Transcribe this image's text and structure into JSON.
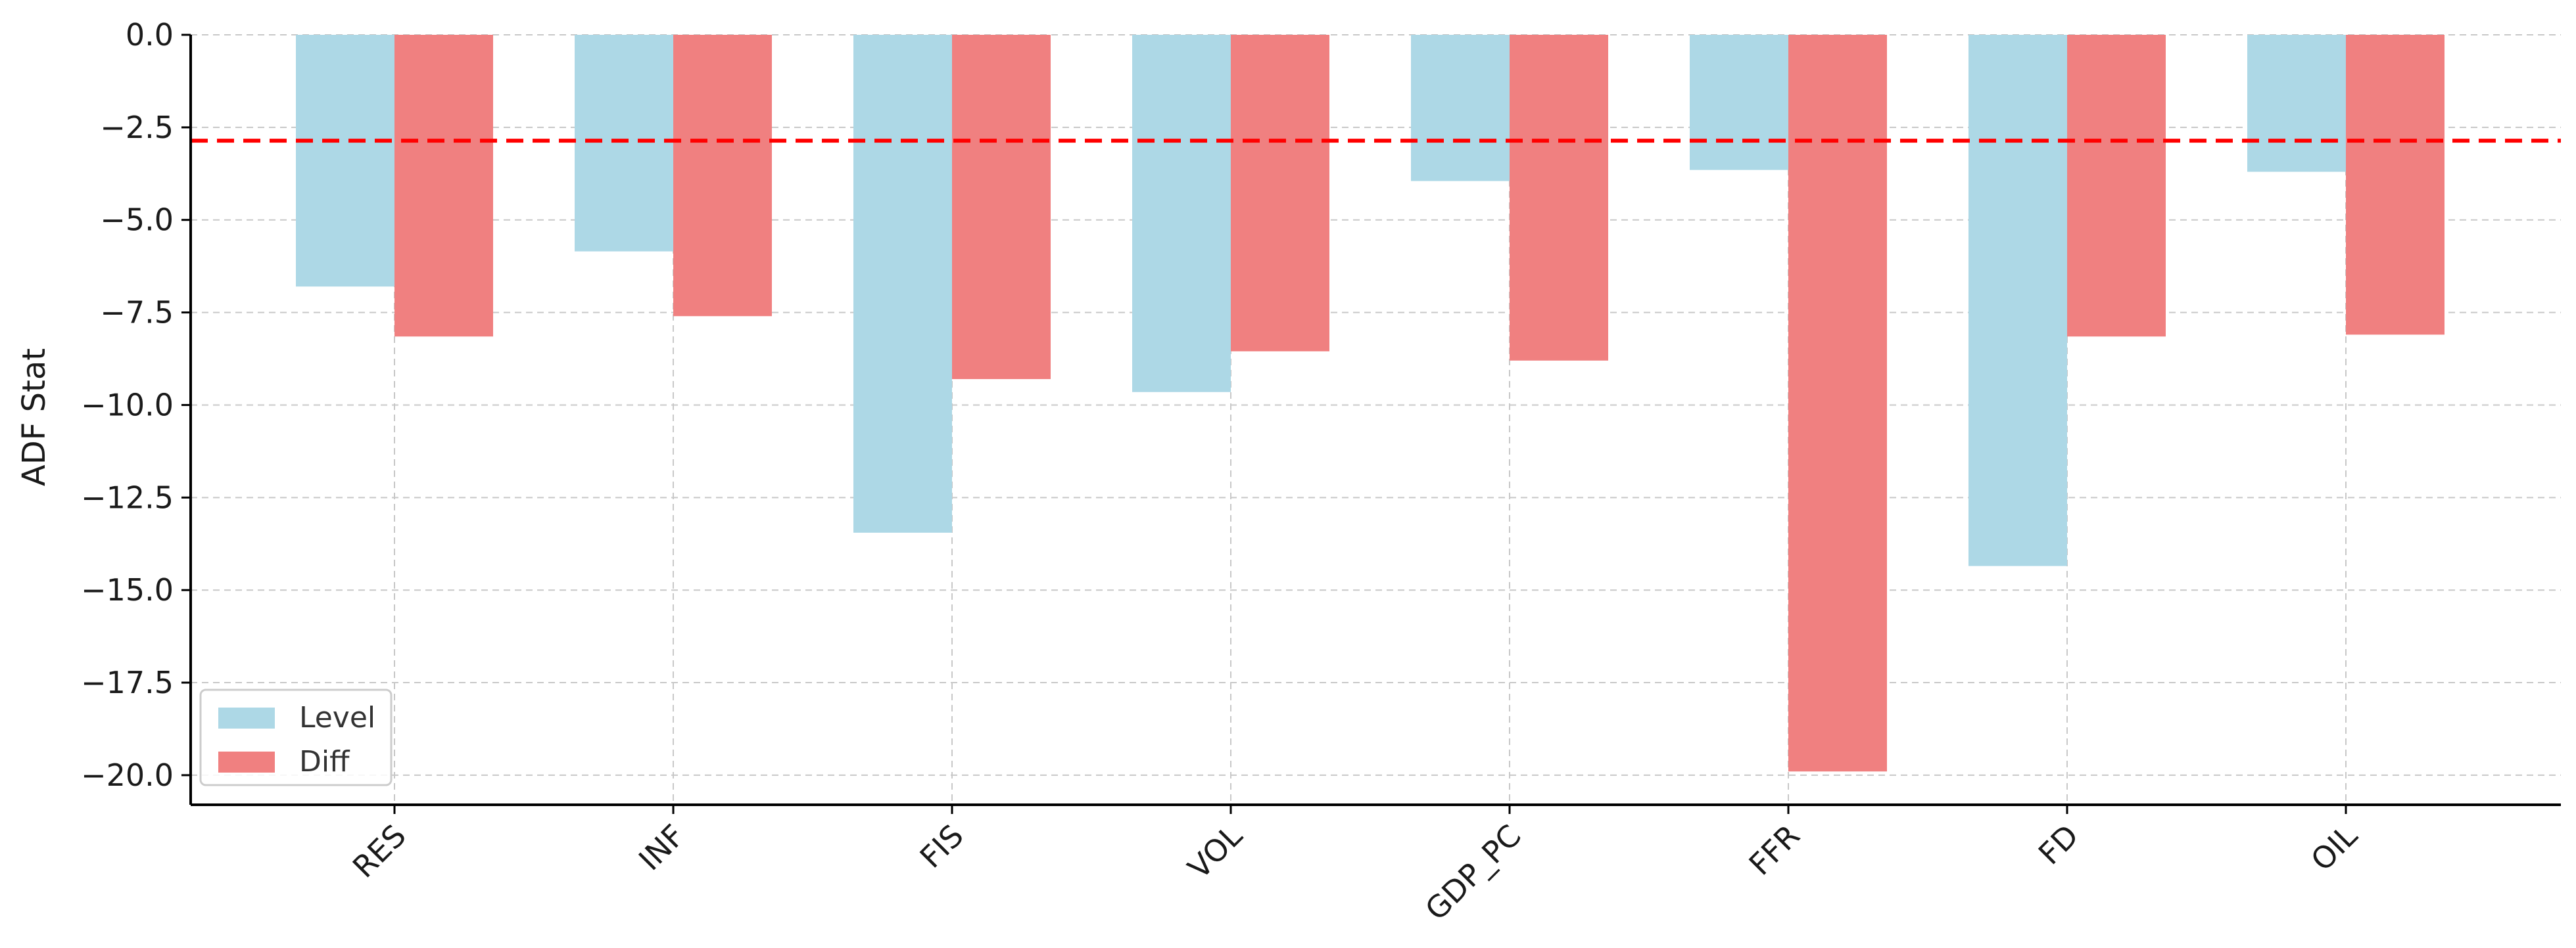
{
  "chart_data": {
    "type": "bar",
    "title": "",
    "xlabel": "",
    "ylabel": "ADF Stat",
    "categories": [
      "RES",
      "INF",
      "FIS",
      "VOL",
      "GDP_PC",
      "FFR",
      "FD",
      "OIL"
    ],
    "series": [
      {
        "name": "Level",
        "color": "#add8e6",
        "values": [
          -6.8,
          -5.85,
          -13.45,
          -9.65,
          -3.95,
          -3.65,
          -14.35,
          -3.7
        ]
      },
      {
        "name": "Diff",
        "color": "#f08080",
        "values": [
          -8.15,
          -7.6,
          -9.3,
          -8.55,
          -8.8,
          -19.9,
          -8.15,
          -8.1
        ]
      }
    ],
    "ylim": [
      -20.8,
      0
    ],
    "yticks": [
      0.0,
      -2.5,
      -5.0,
      -7.5,
      -10.0,
      -12.5,
      -15.0,
      -17.5,
      -20.0
    ],
    "ytick_labels": [
      "0.0",
      "−2.5",
      "−5.0",
      "−7.5",
      "−10.0",
      "−12.5",
      "−15.0",
      "−17.5",
      "−20.0"
    ],
    "reference_line": {
      "y": -2.86,
      "color": "#ff0000",
      "style": "dashed"
    },
    "grid": true,
    "legend_position": "lower-left"
  }
}
